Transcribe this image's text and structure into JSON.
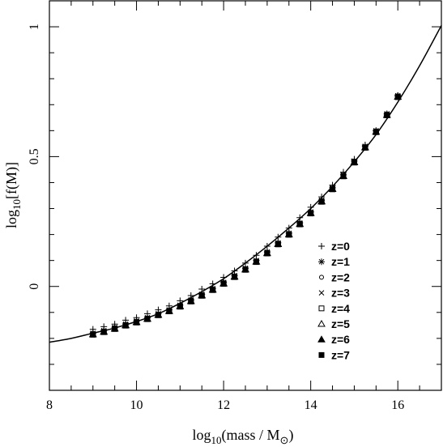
{
  "chart_data": {
    "type": "scatter",
    "xlabel": {
      "base": "log",
      "sub": "10",
      "rest": "(mass / M",
      "symbol": "⊙",
      "close": ")"
    },
    "ylabel": {
      "base": "log",
      "sub": "10",
      "rest": "[f(M)]"
    },
    "xlim": [
      8,
      17
    ],
    "ylim": [
      -0.4,
      1.1
    ],
    "x_ticks": [
      8,
      10,
      12,
      14,
      16
    ],
    "y_ticks": [
      0,
      0.5,
      1
    ],
    "x_tick_labels": [
      "8",
      "10",
      "12",
      "14",
      "16"
    ],
    "y_tick_labels": [
      "0",
      "0.5",
      "1"
    ],
    "grid": false,
    "legend_position": "lower-right",
    "curve": {
      "x": [
        8.0,
        8.5,
        9.0,
        9.5,
        10.0,
        10.5,
        11.0,
        11.5,
        12.0,
        12.5,
        13.0,
        13.5,
        14.0,
        14.5,
        15.0,
        15.5,
        16.0,
        16.5,
        17.0
      ],
      "y": [
        -0.215,
        -0.2,
        -0.18,
        -0.16,
        -0.135,
        -0.105,
        -0.065,
        -0.02,
        0.03,
        0.09,
        0.155,
        0.225,
        0.3,
        0.385,
        0.48,
        0.585,
        0.71,
        0.85,
        1.005
      ]
    },
    "series": [
      {
        "name": "z=0",
        "marker": "plus",
        "x": [
          9.0,
          9.25,
          9.5,
          9.75,
          10.0,
          10.25,
          10.5,
          10.75,
          11.0,
          11.25,
          11.5,
          11.75,
          12.0,
          12.25,
          12.5,
          12.75,
          13.0,
          13.25,
          13.5,
          13.75,
          14.0,
          14.25,
          14.5,
          14.75,
          15.0,
          15.25,
          15.5,
          15.75,
          16.0
        ],
        "y": [
          -0.165,
          -0.155,
          -0.145,
          -0.13,
          -0.12,
          -0.105,
          -0.09,
          -0.075,
          -0.055,
          -0.035,
          -0.01,
          0.01,
          0.035,
          0.06,
          0.09,
          0.12,
          0.155,
          0.19,
          0.225,
          0.265,
          0.305,
          0.345,
          0.39,
          0.44,
          0.49,
          0.545,
          0.6,
          0.66,
          0.735
        ]
      },
      {
        "name": "z=1",
        "marker": "asterisk",
        "x": [
          9.0,
          9.25,
          9.5,
          9.75,
          10.0,
          10.25,
          10.5,
          10.75,
          11.0,
          11.25,
          11.5,
          11.75,
          12.0,
          12.25,
          12.5,
          12.75,
          13.0,
          13.25,
          13.5,
          13.75,
          14.0,
          14.25,
          14.5,
          14.75,
          15.0,
          15.25,
          15.5,
          15.75,
          16.0
        ],
        "y": [
          -0.18,
          -0.17,
          -0.158,
          -0.145,
          -0.133,
          -0.12,
          -0.105,
          -0.09,
          -0.072,
          -0.052,
          -0.03,
          -0.008,
          0.016,
          0.042,
          0.07,
          0.1,
          0.133,
          0.168,
          0.205,
          0.245,
          0.287,
          0.332,
          0.38,
          0.43,
          0.483,
          0.54,
          0.6,
          0.665,
          0.735
        ]
      },
      {
        "name": "z=2",
        "marker": "circle",
        "x": [
          9.0,
          9.25,
          9.5,
          9.75,
          10.0,
          10.25,
          10.5,
          10.75,
          11.0,
          11.25,
          11.5,
          11.75,
          12.0,
          12.25,
          12.5,
          12.75,
          13.0,
          13.25,
          13.5,
          13.75,
          14.0,
          14.25,
          14.5,
          14.75,
          15.0,
          15.25,
          15.5,
          15.75,
          16.0
        ],
        "y": [
          -0.182,
          -0.172,
          -0.16,
          -0.147,
          -0.135,
          -0.122,
          -0.107,
          -0.092,
          -0.074,
          -0.054,
          -0.032,
          -0.01,
          0.014,
          0.04,
          0.068,
          0.098,
          0.131,
          0.166,
          0.203,
          0.243,
          0.285,
          0.33,
          0.378,
          0.428,
          0.481,
          0.538,
          0.598,
          0.663,
          0.733
        ]
      },
      {
        "name": "z=3",
        "marker": "cross",
        "x": [
          9.0,
          9.25,
          9.5,
          9.75,
          10.0,
          10.25,
          10.5,
          10.75,
          11.0,
          11.25,
          11.5,
          11.75,
          12.0,
          12.25,
          12.5,
          12.75,
          13.0,
          13.25,
          13.5,
          13.75,
          14.0,
          14.25,
          14.5,
          14.75,
          15.0,
          15.25,
          15.5,
          15.75,
          16.0
        ],
        "y": [
          -0.183,
          -0.173,
          -0.161,
          -0.148,
          -0.136,
          -0.123,
          -0.108,
          -0.093,
          -0.075,
          -0.055,
          -0.033,
          -0.011,
          0.013,
          0.039,
          0.067,
          0.097,
          0.13,
          0.165,
          0.202,
          0.242,
          0.284,
          0.329,
          0.377,
          0.427,
          0.48,
          0.537,
          0.597,
          0.662,
          0.732
        ]
      },
      {
        "name": "z=4",
        "marker": "square",
        "x": [
          9.0,
          9.25,
          9.5,
          9.75,
          10.0,
          10.25,
          10.5,
          10.75,
          11.0,
          11.25,
          11.5,
          11.75,
          12.0,
          12.25,
          12.5,
          12.75,
          13.0,
          13.25,
          13.5,
          13.75,
          14.0,
          14.25,
          14.5,
          14.75,
          15.0,
          15.25,
          15.5,
          15.75,
          16.0
        ],
        "y": [
          -0.184,
          -0.174,
          -0.162,
          -0.149,
          -0.137,
          -0.124,
          -0.109,
          -0.094,
          -0.076,
          -0.056,
          -0.034,
          -0.012,
          0.012,
          0.038,
          0.066,
          0.096,
          0.129,
          0.164,
          0.201,
          0.241,
          0.283,
          0.328,
          0.376,
          0.426,
          0.479,
          0.536,
          0.596,
          0.661,
          0.731
        ]
      },
      {
        "name": "z=5",
        "marker": "triangle",
        "x": [
          9.0,
          9.25,
          9.5,
          9.75,
          10.0,
          10.25,
          10.5,
          10.75,
          11.0,
          11.25,
          11.5,
          11.75,
          12.0,
          12.25,
          12.5,
          12.75,
          13.0,
          13.25,
          13.5,
          13.75,
          14.0,
          14.25,
          14.5,
          14.75,
          15.0,
          15.25,
          15.5,
          15.75,
          16.0
        ],
        "y": [
          -0.184,
          -0.174,
          -0.162,
          -0.149,
          -0.137,
          -0.124,
          -0.109,
          -0.094,
          -0.076,
          -0.056,
          -0.034,
          -0.012,
          0.012,
          0.038,
          0.066,
          0.096,
          0.129,
          0.164,
          0.201,
          0.241,
          0.283,
          0.328,
          0.376,
          0.426,
          0.479,
          0.536,
          0.596,
          0.661,
          0.731
        ]
      },
      {
        "name": "z=6",
        "marker": "filled-triangle",
        "x": [
          9.0,
          9.25,
          9.5,
          9.75,
          10.0,
          10.25,
          10.5,
          10.75,
          11.0,
          11.25,
          11.5,
          11.75,
          12.0,
          12.25,
          12.5,
          12.75,
          13.0,
          13.25,
          13.5,
          13.75,
          14.0,
          14.25,
          14.5,
          14.75,
          15.0,
          15.25,
          15.5,
          15.75,
          16.0
        ],
        "y": [
          -0.185,
          -0.175,
          -0.163,
          -0.15,
          -0.138,
          -0.125,
          -0.11,
          -0.095,
          -0.077,
          -0.057,
          -0.035,
          -0.013,
          0.011,
          0.037,
          0.065,
          0.095,
          0.128,
          0.163,
          0.2,
          0.24,
          0.282,
          0.327,
          0.375,
          0.425,
          0.478,
          0.535,
          0.595,
          0.66,
          0.73
        ]
      },
      {
        "name": "z=7",
        "marker": "filled-square",
        "x": [
          9.0,
          9.25,
          9.5,
          9.75,
          10.0,
          10.25,
          10.5,
          10.75,
          11.0,
          11.25,
          11.5,
          11.75,
          12.0,
          12.25,
          12.5,
          12.75,
          13.0,
          13.25,
          13.5,
          13.75,
          14.0,
          14.25,
          14.5,
          14.75,
          15.0,
          15.25,
          15.5,
          15.75,
          16.0
        ],
        "y": [
          -0.186,
          -0.176,
          -0.164,
          -0.151,
          -0.139,
          -0.126,
          -0.111,
          -0.096,
          -0.078,
          -0.058,
          -0.036,
          -0.014,
          0.01,
          0.036,
          0.064,
          0.094,
          0.127,
          0.162,
          0.199,
          0.239,
          0.281,
          0.326,
          0.374,
          0.424,
          0.477,
          0.534,
          0.594,
          0.659,
          0.729
        ]
      }
    ]
  }
}
